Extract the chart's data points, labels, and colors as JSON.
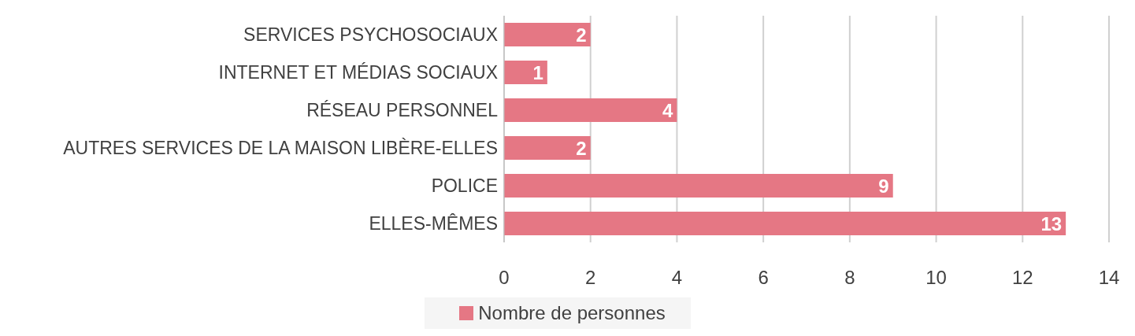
{
  "chart_data": {
    "type": "bar",
    "orientation": "horizontal",
    "categories": [
      "SERVICES PSYCHOSOCIAUX",
      "INTERNET ET MÉDIAS SOCIAUX",
      "RÉSEAU PERSONNEL",
      "AUTRES SERVICES DE LA MAISON LIBÈRE-ELLES",
      "POLICE",
      "ELLES-MÊMES"
    ],
    "series": [
      {
        "name": "Nombre de personnes",
        "color": "#e57784",
        "values": [
          2,
          1,
          4,
          2,
          9,
          13
        ]
      }
    ],
    "xlim": [
      0,
      14
    ],
    "xticks": [
      0,
      2,
      4,
      6,
      8,
      10,
      12,
      14
    ],
    "grid": "x",
    "legend": "bottom",
    "data_labels": true
  }
}
